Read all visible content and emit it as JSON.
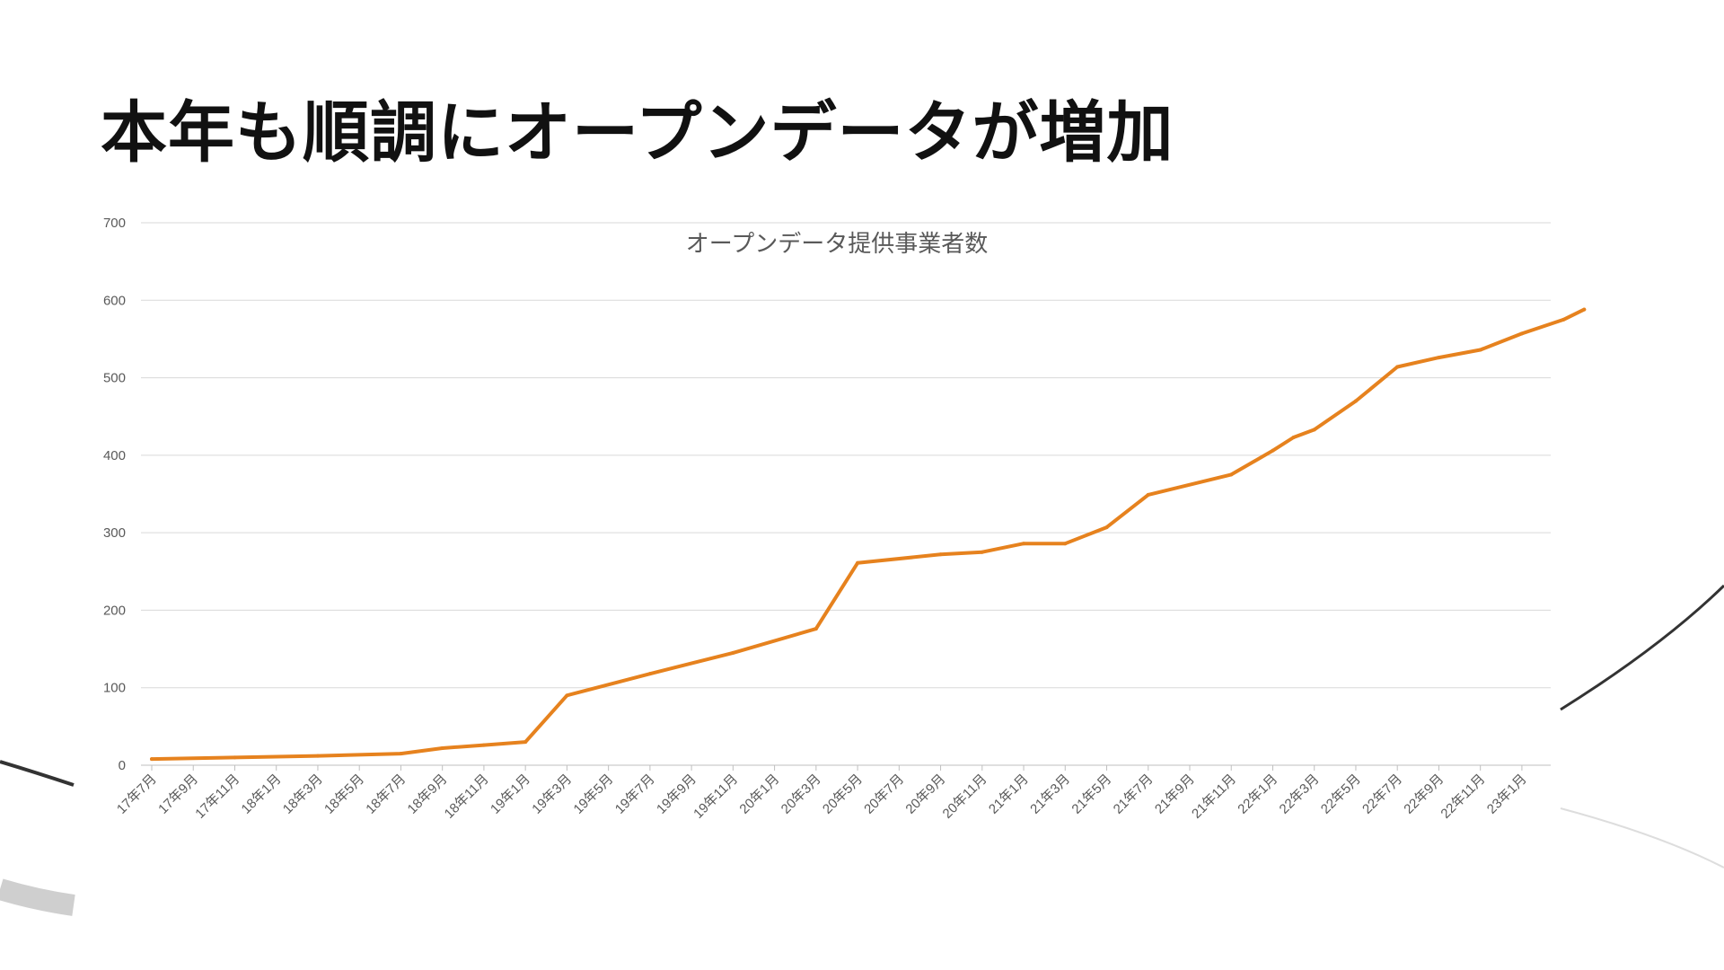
{
  "slide": {
    "title": "本年も順調にオープンデータが増加"
  },
  "colors": {
    "line": "#E6821E",
    "grid": "#D9D9D9",
    "text": "#595959"
  },
  "chart_data": {
    "type": "line",
    "title": "オープンデータ提供事業者数",
    "xlabel": "",
    "ylabel": "",
    "ylim": [
      0,
      700
    ],
    "yticks": [
      0,
      100,
      200,
      300,
      400,
      500,
      600,
      700
    ],
    "grid": true,
    "x_tick_labels": [
      "17年7月",
      "17年9月",
      "17年11月",
      "18年1月",
      "18年3月",
      "18年5月",
      "18年7月",
      "18年9月",
      "18年11月",
      "19年1月",
      "19年3月",
      "19年5月",
      "19年7月",
      "19年9月",
      "19年11月",
      "20年1月",
      "20年3月",
      "20年5月",
      "20年7月",
      "20年9月",
      "20年11月",
      "21年1月",
      "21年3月",
      "21年5月",
      "21年7月",
      "21年9月",
      "21年11月",
      "22年1月",
      "22年3月",
      "22年5月",
      "22年7月",
      "22年9月",
      "22年11月",
      "23年1月"
    ],
    "series": [
      {
        "values": [
          {
            "x": "17年7月",
            "y": 8
          },
          {
            "x": "17年11月",
            "y": 10
          },
          {
            "x": "18年3月",
            "y": 12
          },
          {
            "x": "18年7月",
            "y": 15
          },
          {
            "x": "18年9月",
            "y": 22
          },
          {
            "x": "18年11月",
            "y": 26
          },
          {
            "x": "19年1月",
            "y": 30
          },
          {
            "x": "19年3月",
            "y": 90
          },
          {
            "x": "19年7月",
            "y": 118
          },
          {
            "x": "19年11月",
            "y": 145
          },
          {
            "x": "20年3月",
            "y": 176
          },
          {
            "x": "20年5月",
            "y": 261
          },
          {
            "x": "20年9月",
            "y": 272
          },
          {
            "x": "20年11月",
            "y": 275
          },
          {
            "x": "21年1月",
            "y": 286
          },
          {
            "x": "21年3月",
            "y": 286
          },
          {
            "x": "21年5月",
            "y": 307
          },
          {
            "x": "21年7月",
            "y": 349
          },
          {
            "x": "21年11月",
            "y": 375
          },
          {
            "x": "22年1月",
            "y": 406
          },
          {
            "x": "22年2月",
            "y": 423
          },
          {
            "x": "22年3月",
            "y": 433
          },
          {
            "x": "22年5月",
            "y": 470
          },
          {
            "x": "22年7月",
            "y": 514
          },
          {
            "x": "22年9月",
            "y": 526
          },
          {
            "x": "22年11月",
            "y": 536
          },
          {
            "x": "23年1月",
            "y": 557
          },
          {
            "x": "23年3月",
            "y": 575
          },
          {
            "x": "23年4月",
            "y": 588
          }
        ]
      }
    ]
  }
}
